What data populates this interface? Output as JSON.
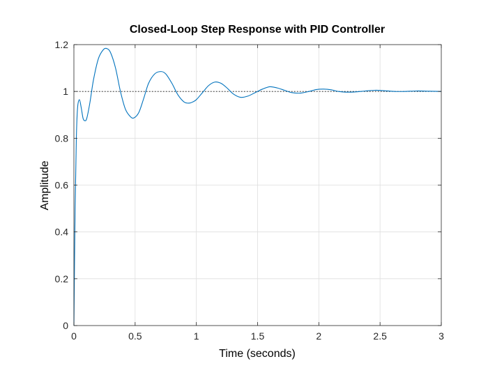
{
  "chart_data": {
    "type": "line",
    "title": "Closed-Loop Step Response with PID Controller",
    "xlabel": "Time (seconds)",
    "ylabel": "Amplitude",
    "xlim": [
      0,
      3
    ],
    "ylim": [
      0,
      1.2
    ],
    "xticks": [
      0,
      0.5,
      1,
      1.5,
      2,
      2.5,
      3
    ],
    "xtick_labels": [
      "0",
      "0.5",
      "1",
      "1.5",
      "2",
      "2.5",
      "3"
    ],
    "yticks": [
      0,
      0.2,
      0.4,
      0.6,
      0.8,
      1,
      1.2
    ],
    "ytick_labels": [
      "0",
      "0.2",
      "0.4",
      "0.6",
      "0.8",
      "1",
      "1.2"
    ],
    "grid": true,
    "reference_line": {
      "y": 1,
      "style": "dotted",
      "color": "#000000"
    },
    "series": [
      {
        "color": "#0072BD",
        "x": [
          0,
          0.01,
          0.02,
          0.03,
          0.045,
          0.06,
          0.075,
          0.09,
          0.105,
          0.13,
          0.16,
          0.2,
          0.24,
          0.27,
          0.3,
          0.34,
          0.38,
          0.42,
          0.46,
          0.49,
          0.53,
          0.57,
          0.61,
          0.66,
          0.71,
          0.75,
          0.8,
          0.85,
          0.9,
          0.94,
          0.97,
          1.0,
          1.05,
          1.1,
          1.15,
          1.2,
          1.25,
          1.3,
          1.36,
          1.42,
          1.48,
          1.54,
          1.6,
          1.66,
          1.72,
          1.78,
          1.85,
          1.92,
          1.98,
          2.04,
          2.1,
          2.16,
          2.22,
          2.3,
          2.38,
          2.46,
          2.54,
          2.62,
          2.7,
          2.8,
          2.9,
          3.0
        ],
        "y": [
          0,
          0.5,
          0.8,
          0.93,
          0.965,
          0.93,
          0.885,
          0.875,
          0.885,
          0.95,
          1.05,
          1.14,
          1.178,
          1.183,
          1.165,
          1.1,
          1.0,
          0.925,
          0.893,
          0.887,
          0.91,
          0.97,
          1.035,
          1.075,
          1.085,
          1.075,
          1.035,
          0.985,
          0.955,
          0.95,
          0.955,
          0.965,
          0.995,
          1.025,
          1.04,
          1.035,
          1.015,
          0.99,
          0.975,
          0.98,
          0.995,
          1.01,
          1.02,
          1.015,
          1.005,
          0.995,
          0.993,
          1.0,
          1.008,
          1.01,
          1.007,
          1.0,
          0.997,
          0.998,
          1.002,
          1.005,
          1.003,
          1.0,
          1.0,
          1.002,
          1.001,
          1.0
        ]
      }
    ]
  }
}
